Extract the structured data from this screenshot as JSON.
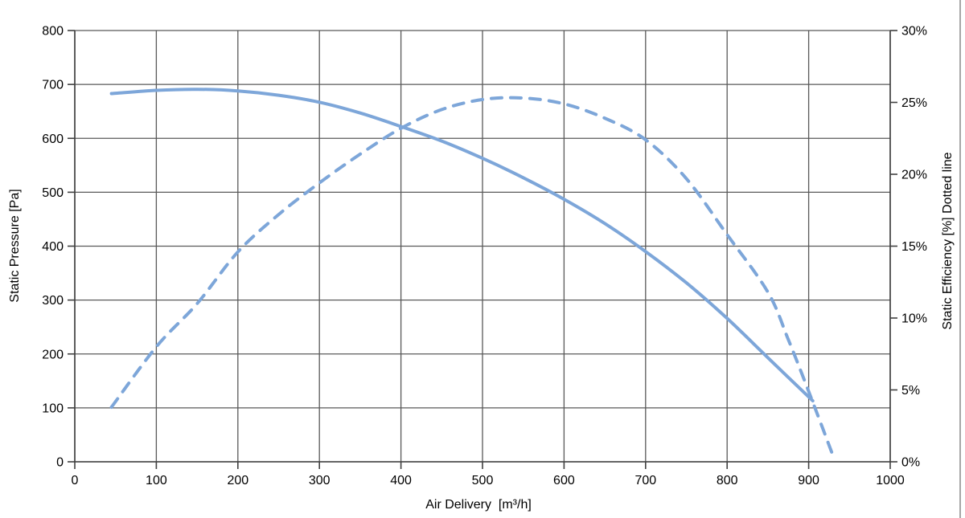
{
  "window": {
    "background": "#ffffff"
  },
  "chart_data": {
    "type": "line",
    "title": "",
    "xlabel": "Air Delivery  [m³/h]",
    "ylabel_left": "Static Pressure [Pa]",
    "ylabel_right": "Static Efficiency [%] Dotted line",
    "grid": true,
    "legend": "none",
    "x_axis": {
      "min": 0,
      "max": 1000,
      "ticks": [
        0,
        100,
        200,
        300,
        400,
        500,
        600,
        700,
        800,
        900,
        1000
      ],
      "tick_labels": [
        "0",
        "100",
        "200",
        "300",
        "400",
        "500",
        "600",
        "700",
        "800",
        "900",
        "1000"
      ]
    },
    "y_axis_left": {
      "min": 0,
      "max": 800,
      "ticks": [
        0,
        100,
        200,
        300,
        400,
        500,
        600,
        700,
        800
      ],
      "tick_labels": [
        "0",
        "100",
        "200",
        "300",
        "400",
        "500",
        "600",
        "700",
        "800"
      ]
    },
    "y_axis_right": {
      "min": 0,
      "max": 30,
      "ticks": [
        0,
        5,
        10,
        15,
        20,
        25,
        30
      ],
      "tick_labels": [
        "0%",
        "5%",
        "10%",
        "15%",
        "20%",
        "25%",
        "30%"
      ]
    },
    "series": [
      {
        "name": "Static Pressure",
        "axis": "left",
        "line_style": "solid",
        "color": "#7da6d9",
        "points": [
          [
            45,
            683
          ],
          [
            100,
            689
          ],
          [
            150,
            691
          ],
          [
            200,
            688
          ],
          [
            250,
            680
          ],
          [
            300,
            667
          ],
          [
            350,
            647
          ],
          [
            400,
            622
          ],
          [
            450,
            595
          ],
          [
            500,
            563
          ],
          [
            550,
            527
          ],
          [
            600,
            487
          ],
          [
            650,
            442
          ],
          [
            700,
            390
          ],
          [
            750,
            332
          ],
          [
            800,
            266
          ],
          [
            850,
            193
          ],
          [
            905,
            113
          ]
        ]
      },
      {
        "name": "Static Efficiency",
        "axis": "right",
        "line_style": "dashed",
        "color": "#7da6d9",
        "points": [
          [
            45,
            3.8
          ],
          [
            100,
            8.0
          ],
          [
            150,
            11.0
          ],
          [
            200,
            14.6
          ],
          [
            250,
            17.2
          ],
          [
            300,
            19.4
          ],
          [
            350,
            21.4
          ],
          [
            400,
            23.2
          ],
          [
            450,
            24.5
          ],
          [
            500,
            25.2
          ],
          [
            550,
            25.3
          ],
          [
            600,
            24.9
          ],
          [
            650,
            23.9
          ],
          [
            700,
            22.4
          ],
          [
            750,
            19.7
          ],
          [
            800,
            15.8
          ],
          [
            850,
            11.8
          ],
          [
            875,
            8.5
          ],
          [
            900,
            4.9
          ],
          [
            930,
            0.4
          ]
        ]
      }
    ],
    "colors": {
      "grid": "#595959",
      "axis": "#404040",
      "text": "#000000",
      "frame_right": "#a6a6a6"
    }
  }
}
